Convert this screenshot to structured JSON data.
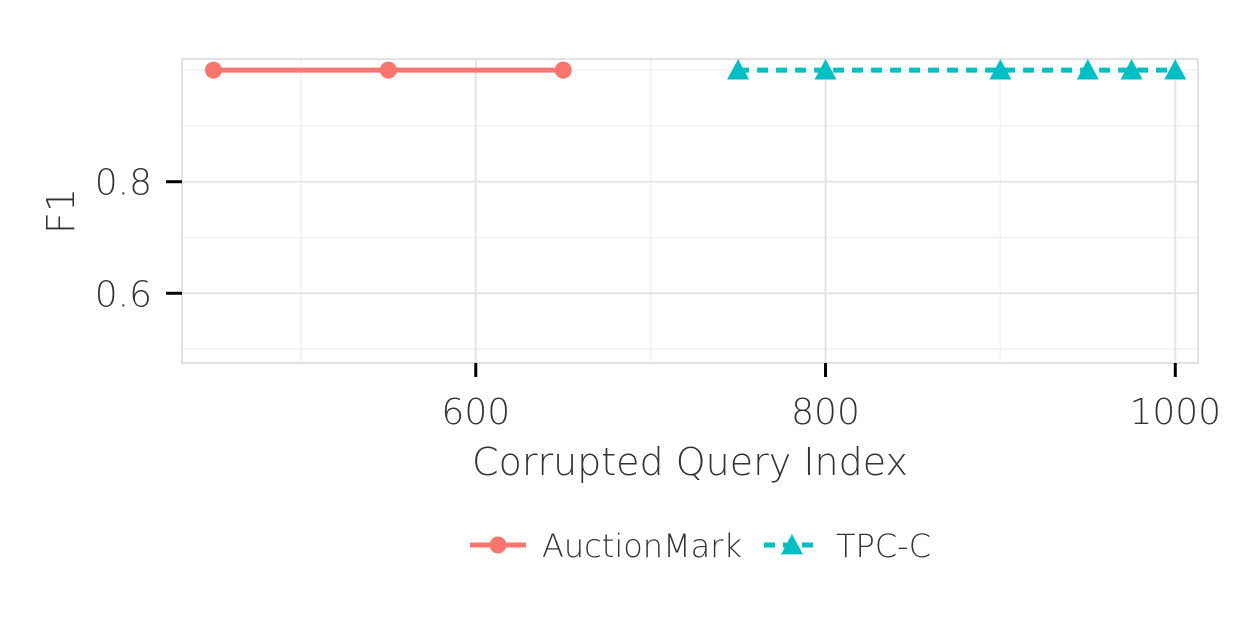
{
  "chart_data": {
    "type": "line",
    "xlabel": "Corrupted Query Index",
    "ylabel": "F1",
    "xlim": [
      432,
      1013
    ],
    "ylim": [
      0.475,
      1.02
    ],
    "x_ticks": [
      600,
      800,
      1000
    ],
    "y_ticks": [
      0.6,
      0.8
    ],
    "x_minor_ticks": [
      500,
      700,
      900
    ],
    "y_minor_ticks": [
      0.5,
      0.7,
      0.9,
      1.0
    ],
    "grid": true,
    "legend_position": "bottom",
    "series": [
      {
        "name": "AuctionMark",
        "color": "#F8766D",
        "marker": "circle",
        "line_style": "solid",
        "x": [
          450,
          550,
          650
        ],
        "y": [
          1.0,
          1.0,
          1.0
        ]
      },
      {
        "name": "TPC-C",
        "color": "#00BFC4",
        "marker": "triangle",
        "line_style": "dashed",
        "x": [
          750,
          800,
          900,
          950,
          975,
          1000
        ],
        "y": [
          1.0,
          1.0,
          1.0,
          1.0,
          1.0,
          1.0
        ]
      }
    ]
  }
}
